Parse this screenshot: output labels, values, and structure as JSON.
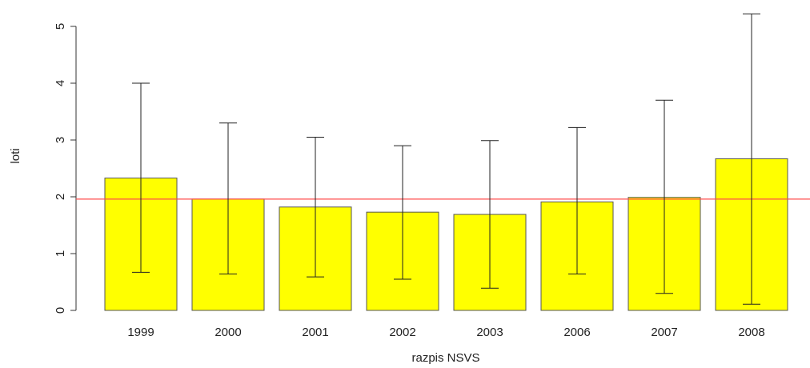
{
  "chart_data": {
    "type": "bar",
    "title": "",
    "xlabel": "razpis NSVS",
    "ylabel": "loti",
    "categories": [
      "1999",
      "2000",
      "2001",
      "2002",
      "2003",
      "2006",
      "2007",
      "2008"
    ],
    "values": [
      2.33,
      1.96,
      1.82,
      1.73,
      1.69,
      1.91,
      1.99,
      2.67
    ],
    "error_bars": {
      "lower": [
        0.67,
        0.64,
        0.59,
        0.55,
        0.39,
        0.64,
        0.3,
        0.11
      ],
      "upper": [
        4.0,
        3.3,
        3.05,
        2.9,
        2.99,
        3.22,
        3.7,
        5.22
      ]
    },
    "reference_line": {
      "value": 1.96,
      "color": "#ff4d4d"
    },
    "ylim": [
      0,
      5.3
    ],
    "yticks": [
      "0",
      "1",
      "2",
      "3",
      "4",
      "5"
    ],
    "bar_color": "#ffff00",
    "grid": false,
    "legend": "none"
  }
}
